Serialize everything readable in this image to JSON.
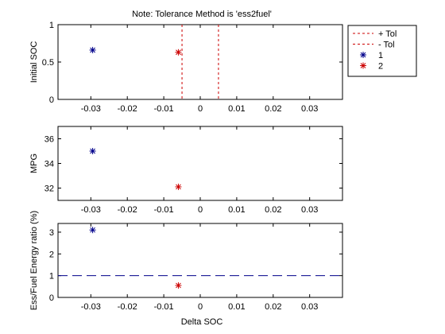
{
  "figure": {
    "background": "#ffffff",
    "title": "Note: Tolerance Method is 'ess2fuel'",
    "xlabel": "Delta SOC"
  },
  "legend": {
    "placement": "top-right, outside plot",
    "entries": [
      {
        "label": "+ Tol",
        "style": "dashed-line",
        "color": "#cc0000"
      },
      {
        "label": "- Tol",
        "style": "dashed-line",
        "color": "#cc0000"
      },
      {
        "label": "1",
        "style": "star-marker",
        "color": "#00008b"
      },
      {
        "label": "2",
        "style": "star-marker",
        "color": "#cc0000"
      }
    ]
  },
  "chart_data": [
    {
      "type": "scatter",
      "ylabel": "Initial SOC",
      "xlim": [
        -0.039,
        0.039
      ],
      "ylim": [
        0,
        1
      ],
      "xticks": [
        -0.03,
        -0.02,
        -0.01,
        0,
        0.01,
        0.02,
        0.03
      ],
      "xtick_labels": [
        "-0.03",
        "-0.02",
        "-0.01",
        "0",
        "0.01",
        "0.02",
        "0.03"
      ],
      "yticks": [
        0,
        0.5,
        1
      ],
      "ytick_labels": [
        "0",
        "0.5",
        "1"
      ],
      "grid": false,
      "vlines": [
        {
          "name": "+ Tol",
          "x": -0.005,
          "color": "#cc0000",
          "style": "dashed"
        },
        {
          "name": "- Tol",
          "x": 0.005,
          "color": "#cc0000",
          "style": "dashed"
        }
      ],
      "series": [
        {
          "name": "1",
          "color": "#00008b",
          "points": [
            [
              -0.0295,
              0.66
            ]
          ]
        },
        {
          "name": "2",
          "color": "#cc0000",
          "points": [
            [
              -0.006,
              0.63
            ]
          ]
        }
      ]
    },
    {
      "type": "scatter",
      "ylabel": "MPG",
      "xlim": [
        -0.039,
        0.039
      ],
      "ylim": [
        31,
        37
      ],
      "xticks": [
        -0.03,
        -0.02,
        -0.01,
        0,
        0.01,
        0.02,
        0.03
      ],
      "xtick_labels": [
        "-0.03",
        "-0.02",
        "-0.01",
        "0",
        "0.01",
        "0.02",
        "0.03"
      ],
      "yticks": [
        32,
        34,
        36
      ],
      "ytick_labels": [
        "32",
        "34",
        "36"
      ],
      "grid": false,
      "series": [
        {
          "name": "1",
          "color": "#00008b",
          "points": [
            [
              -0.0295,
              35.0
            ]
          ]
        },
        {
          "name": "2",
          "color": "#cc0000",
          "points": [
            [
              -0.006,
              32.1
            ]
          ]
        }
      ]
    },
    {
      "type": "scatter",
      "ylabel": "Ess/Fuel Energy ratio (%)",
      "xlabel": "Delta SOC",
      "xlim": [
        -0.039,
        0.039
      ],
      "ylim": [
        0,
        3.4
      ],
      "xticks": [
        -0.03,
        -0.02,
        -0.01,
        0,
        0.01,
        0.02,
        0.03
      ],
      "xtick_labels": [
        "-0.03",
        "-0.02",
        "-0.01",
        "0",
        "0.01",
        "0.02",
        "0.03"
      ],
      "yticks": [
        0,
        1,
        2,
        3
      ],
      "ytick_labels": [
        "0",
        "1",
        "2",
        "3"
      ],
      "grid": false,
      "hlines": [
        {
          "y": 1,
          "color": "#00008b",
          "style": "long-dash"
        }
      ],
      "series": [
        {
          "name": "1",
          "color": "#00008b",
          "points": [
            [
              -0.0295,
              3.1
            ]
          ]
        },
        {
          "name": "2",
          "color": "#cc0000",
          "points": [
            [
              -0.006,
              0.55
            ]
          ]
        }
      ]
    }
  ]
}
